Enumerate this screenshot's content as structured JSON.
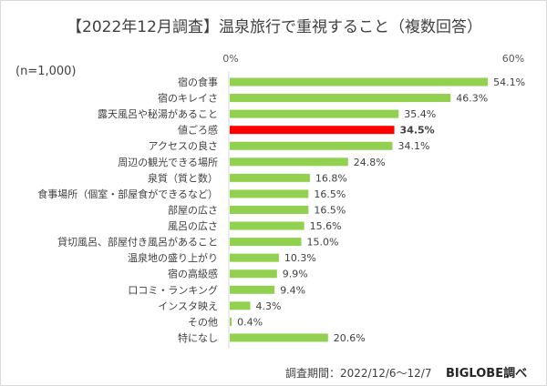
{
  "chart_data": {
    "type": "bar",
    "orientation": "horizontal",
    "title": "【2022年12月調査】温泉旅行で重視すること（複数回答）",
    "note": "(n=1,000)",
    "xlim": [
      0,
      60
    ],
    "tick_labels": [
      "0%",
      "60%"
    ],
    "categories": [
      "宿の食事",
      "宿のキレイさ",
      "露天風呂や秘湯があること",
      "値ごろ感",
      "アクセスの良さ",
      "周辺の観光できる場所",
      "泉質（質と数）",
      "食事場所（個室・部屋食ができるなど）",
      "部屋の広さ",
      "風呂の広さ",
      "貸切風呂、部屋付き風呂があること",
      "温泉地の盛り上がり",
      "宿の高級感",
      "口コミ・ランキング",
      "インスタ映え",
      "その他",
      "特になし"
    ],
    "values": [
      54.1,
      46.3,
      35.4,
      34.5,
      34.1,
      24.8,
      16.8,
      16.5,
      16.5,
      15.6,
      15.0,
      10.3,
      9.9,
      9.4,
      4.3,
      0.4,
      20.6
    ],
    "value_labels": [
      "54.1%",
      "46.3%",
      "35.4%",
      "34.5%",
      "34.1%",
      "24.8%",
      "16.8%",
      "16.5%",
      "16.5%",
      "15.6%",
      "15.0%",
      "10.3%",
      "9.9%",
      "9.4%",
      "4.3%",
      "0.4%",
      "20.6%"
    ],
    "highlight_index": 3,
    "colors": {
      "bar": "#92d050",
      "highlight": "#ff0000"
    },
    "grid": false
  },
  "footer": {
    "period": "調査期間：2022/12/6～12/7",
    "source": "BIGLOBE調べ"
  }
}
